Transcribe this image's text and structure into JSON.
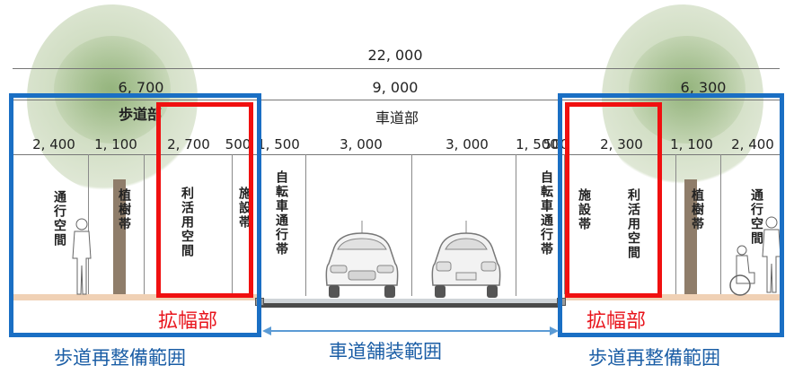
{
  "dimensions": {
    "total": "22, 000",
    "sidewalk_left": "6, 700",
    "roadway": "9, 000",
    "sidewalk_right": "6, 300",
    "left_sidewalk_parts": [
      "2, 400",
      "1, 100",
      "2, 700",
      "500"
    ],
    "road_parts": [
      "1, 500",
      "3, 000",
      "3, 000",
      "1, 500"
    ],
    "right_sidewalk_parts": [
      "500",
      "2, 300",
      "1, 100",
      "2, 400"
    ]
  },
  "section_labels": {
    "sidewalk": "歩道部",
    "roadway": "車道部"
  },
  "zones_left": {
    "walking_space": "通行空間",
    "planting_strip": "植樹帯",
    "utilization_space": "利活用空間",
    "facility_strip": "施設帯"
  },
  "zones_road": {
    "bicycle_left": "自転車通行帯",
    "bicycle_right": "自転車通行帯"
  },
  "zones_right": {
    "facility_strip": "施設帯",
    "utilization_space": "利活用空間",
    "planting_strip": "植樹帯",
    "walking_space": "通行空間"
  },
  "annotations": {
    "widening_left": "拡幅部",
    "widening_right": "拡幅部",
    "sidewalk_renovation_left": "歩道再整備範囲",
    "road_paving": "車道舗装範囲",
    "sidewalk_renovation_right": "歩道再整備範囲"
  },
  "colors": {
    "blue_frame": "#1a6fc4",
    "red_frame": "#f01010",
    "arrow": "#5b9bd5",
    "sidewalk_fill": "#f0d1b5"
  }
}
